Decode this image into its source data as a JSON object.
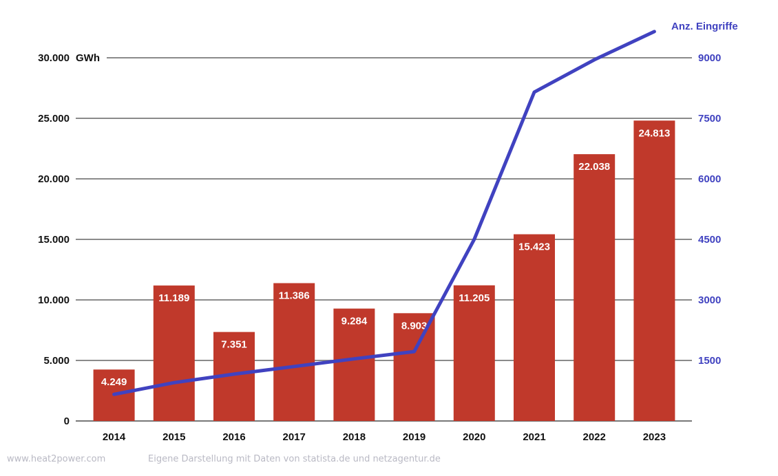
{
  "chart_data": {
    "type": "bar+line",
    "categories": [
      "2014",
      "2015",
      "2016",
      "2017",
      "2018",
      "2019",
      "2020",
      "2021",
      "2022",
      "2023"
    ],
    "series": [
      {
        "name": "",
        "type": "bar",
        "axis": "left",
        "values": [
          4249,
          11189,
          7351,
          11386,
          9284,
          8903,
          11205,
          15423,
          22038,
          24813
        ],
        "labels": [
          "4.249",
          "11.189",
          "7.351",
          "11.386",
          "9.284",
          "8.903",
          "11.205",
          "15.423",
          "22.038",
          "24.813"
        ],
        "color": "#c0392b"
      },
      {
        "name": "Anz. Eingriffe",
        "type": "line",
        "axis": "right",
        "values": [
          660,
          950,
          1160,
          1350,
          1540,
          1720,
          4500,
          8150,
          8950,
          9650
        ],
        "color": "#4042c0"
      }
    ],
    "left_axis": {
      "ylim": [
        0,
        30000
      ],
      "ticks": [
        {
          "value": 0,
          "label": "0"
        },
        {
          "value": 5000,
          "label": "5.000"
        },
        {
          "value": 10000,
          "label": "10.000"
        },
        {
          "value": 15000,
          "label": "15.000"
        },
        {
          "value": 20000,
          "label": "20.000"
        },
        {
          "value": 25000,
          "label": "25.000"
        },
        {
          "value": 30000,
          "label": "30.000"
        }
      ],
      "unit": "GWh"
    },
    "right_axis": {
      "ylim": [
        0,
        9000
      ],
      "ticks": [
        {
          "value": 1500,
          "label": "1500"
        },
        {
          "value": 3000,
          "label": "3000"
        },
        {
          "value": 4500,
          "label": "4500"
        },
        {
          "value": 6000,
          "label": "6000"
        },
        {
          "value": 7500,
          "label": "7500"
        },
        {
          "value": 9000,
          "label": "9000"
        }
      ],
      "label": "Anz. Eingriffe",
      "color": "#4042c0"
    },
    "grid": true
  },
  "footer": {
    "left": "www.heat2power.com",
    "right": "Eigene Darstellung mit Daten von statista.de und netzagentur.de"
  }
}
